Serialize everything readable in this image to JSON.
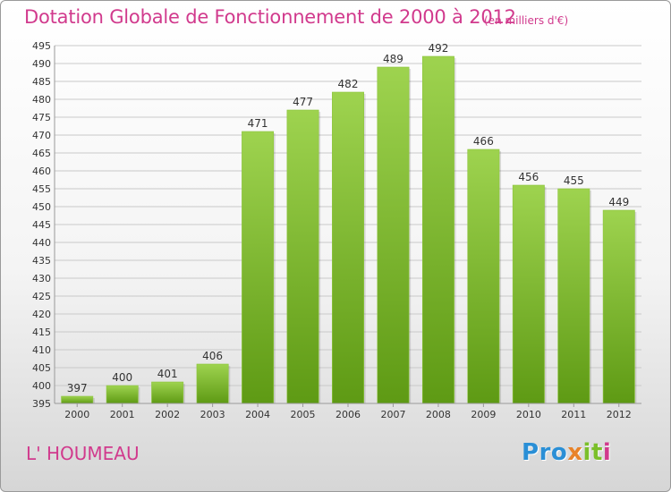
{
  "chart_title": "Dotation Globale de Fonctionnement de 2000 à 2012",
  "unit_note": "(en milliers d'€)",
  "commune_name": "L' HOUMEAU",
  "logo": {
    "letters": [
      {
        "char": "P",
        "color": "#2a8fd6"
      },
      {
        "char": "r",
        "color": "#2a8fd6"
      },
      {
        "char": "o",
        "color": "#2a8fd6"
      },
      {
        "char": "x",
        "color": "#e8832a"
      },
      {
        "char": "i",
        "color": "#7bbf2a"
      },
      {
        "char": "t",
        "color": "#7bbf2a"
      },
      {
        "char": "i",
        "color": "#d13a8d"
      }
    ]
  },
  "colors": {
    "bar_top": "#9ed34f",
    "bar_bottom": "#5e9a14",
    "accent": "#d13a8d",
    "grid": "#c9c9c9"
  },
  "chart_data": {
    "type": "bar",
    "title": "Dotation Globale de Fonctionnement de 2000 à 2012",
    "subtitle": "(en milliers d'€)",
    "xlabel": "",
    "ylabel": "",
    "categories": [
      "2000",
      "2001",
      "2002",
      "2003",
      "2004",
      "2005",
      "2006",
      "2007",
      "2008",
      "2009",
      "2010",
      "2011",
      "2012"
    ],
    "values": [
      397,
      400,
      401,
      406,
      471,
      477,
      482,
      489,
      492,
      466,
      456,
      455,
      449
    ],
    "ylim": [
      395,
      495
    ],
    "ytick_step": 5,
    "grid": true,
    "data_labels": true,
    "legend": "none"
  }
}
